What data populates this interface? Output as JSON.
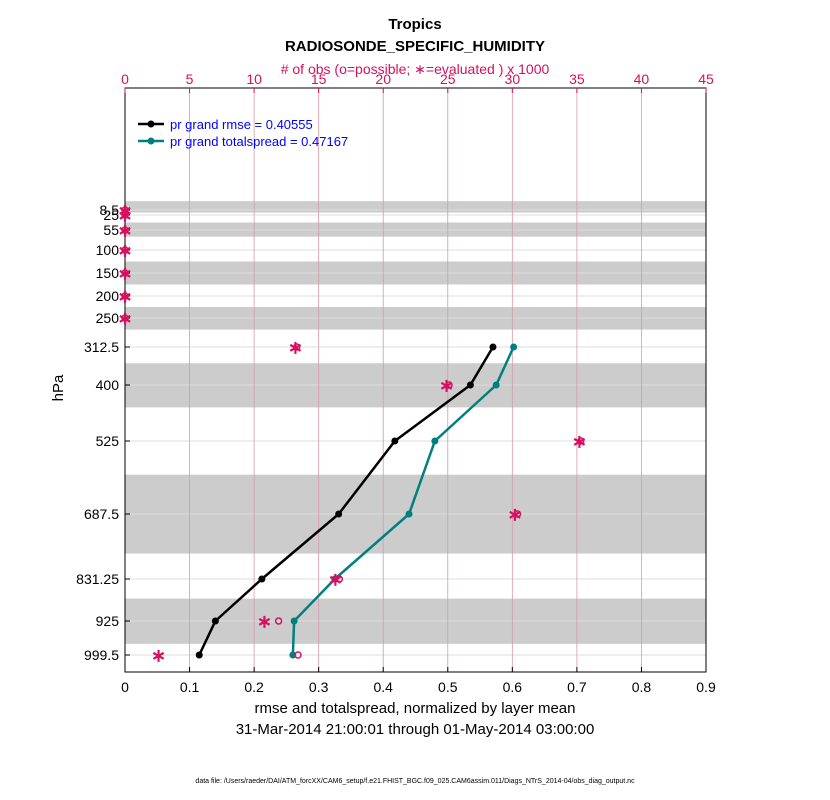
{
  "chart_data": {
    "type": "line",
    "title": "Tropics",
    "subtitle": "RADIOSONDE_SPECIFIC_HUMIDITY",
    "top_axis_label": "# of obs (o=possible; ∗=evaluated ) x 1000",
    "xlabel": "rmse and totalspread, normalized by layer mean",
    "date_range": "31-Mar-2014 21:00:01 through 01-May-2014 03:00:00",
    "ylabel": "hPa",
    "footer": "data file: /Users/raeder/DAI/ATM_forcXX/CAM6_setup/f.e21.FHIST_BGC.f09_025.CAM6assim.011/Diags_NTrS_2014-04/obs_diag_output.nc",
    "xlim": [
      0,
      0.9
    ],
    "x_ticks": [
      "0",
      "0.1",
      "0.2",
      "0.3",
      "0.4",
      "0.5",
      "0.6",
      "0.7",
      "0.8",
      "0.9"
    ],
    "top_xlim": [
      0,
      45
    ],
    "top_ticks": [
      "0",
      "5",
      "10",
      "15",
      "20",
      "25",
      "30",
      "35",
      "40",
      "45"
    ],
    "levels": [
      "8.5",
      "25",
      "55",
      "100",
      "150",
      "200",
      "250",
      "312.5",
      "400",
      "525",
      "687.5",
      "831.25",
      "925",
      "999.5"
    ],
    "level_values": [
      8.5,
      25,
      55,
      100,
      150,
      200,
      250,
      312.5,
      400,
      525,
      687.5,
      831.25,
      925,
      999.5
    ],
    "shaded_bands_hPa": [
      [
        1,
        17
      ],
      [
        40,
        70
      ],
      [
        125,
        175
      ],
      [
        225,
        275
      ],
      [
        350,
        450
      ],
      [
        600,
        775
      ],
      [
        875,
        975
      ]
    ],
    "series": [
      {
        "name": "pr grand rmse = 0.40555",
        "color": "#000000",
        "levels_hPa": [
          312.5,
          400,
          525,
          687.5,
          831.25,
          925,
          999.5
        ],
        "values": [
          0.57,
          0.535,
          0.418,
          0.331,
          0.212,
          0.14,
          0.115
        ]
      },
      {
        "name": "pr grand totalspread = 0.47167",
        "color": "#007f7f",
        "levels_hPa": [
          312.5,
          400,
          525,
          687.5,
          831.25,
          925,
          999.5
        ],
        "values": [
          0.602,
          0.575,
          0.48,
          0.44,
          0.325,
          0.262,
          0.26
        ]
      }
    ],
    "obs_counts_thousands": {
      "levels_hPa": [
        8.5,
        25,
        55,
        100,
        150,
        200,
        250,
        312.5,
        400,
        525,
        687.5,
        831.25,
        925,
        999.5
      ],
      "possible": [
        0,
        0,
        0,
        0,
        0,
        0,
        0,
        13.3,
        25.1,
        35.3,
        30.4,
        16.6,
        11.9,
        13.4
      ],
      "evaluated": [
        0,
        0,
        0,
        0,
        0,
        0,
        0,
        13.2,
        24.9,
        35.2,
        30.2,
        16.3,
        10.8,
        2.6
      ]
    },
    "colors": {
      "obs": "#d6105f",
      "legend_text": "#0000ff",
      "band": "#cccccc",
      "grid_v": "#d79aa8",
      "grid_h": "#dddddd"
    }
  }
}
